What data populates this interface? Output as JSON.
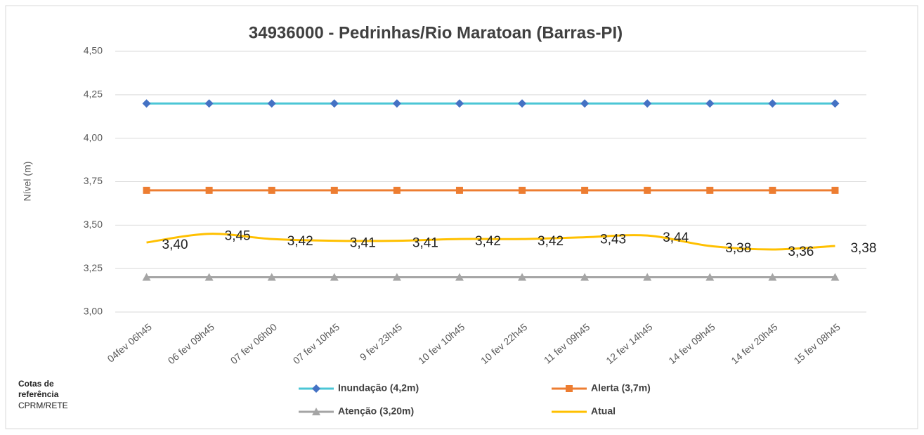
{
  "chart_data": {
    "type": "line",
    "title": "34936000 - Pedrinhas/Rio Maratoan (Barras-PI)",
    "y_label": "Nível (m)",
    "annotation": [
      "Cotas de",
      "referência",
      "CPRM/RETE"
    ],
    "categories": [
      "04fev 06h45",
      "06 fev 09h45",
      "07 fev 06h00",
      "07 fev 10h45",
      "9 fev 23h45",
      "10 fev 10h45",
      "10 fev 22h45",
      "11 fev 09h45",
      "12 fev 14h45",
      "14 fev 09h45",
      "14 fev 20h45",
      "15 fev 08h45"
    ],
    "series": [
      {
        "name": "Inundação (4,2m)",
        "color": "#4bc6d6",
        "marker": "diamond",
        "marker_color": "#4472c4",
        "values": [
          4.2,
          4.2,
          4.2,
          4.2,
          4.2,
          4.2,
          4.2,
          4.2,
          4.2,
          4.2,
          4.2,
          4.2
        ]
      },
      {
        "name": "Alerta (3,7m)",
        "color": "#ed7d31",
        "marker": "square",
        "marker_color": "#ed7d31",
        "values": [
          3.7,
          3.7,
          3.7,
          3.7,
          3.7,
          3.7,
          3.7,
          3.7,
          3.7,
          3.7,
          3.7,
          3.7
        ]
      },
      {
        "name": "Atenção (3,20m)",
        "color": "#a5a5a5",
        "marker": "triangle",
        "marker_color": "#a5a5a5",
        "values": [
          3.2,
          3.2,
          3.2,
          3.2,
          3.2,
          3.2,
          3.2,
          3.2,
          3.2,
          3.2,
          3.2,
          3.2
        ]
      },
      {
        "name": "Atual",
        "color": "#ffc000",
        "smooth": true,
        "values": [
          3.4,
          3.45,
          3.42,
          3.41,
          3.41,
          3.42,
          3.42,
          3.43,
          3.44,
          3.38,
          3.36,
          3.38
        ],
        "value_labels": [
          "3,40",
          "3,45",
          "3,42",
          "3,41",
          "3,41",
          "3,42",
          "3,42",
          "3,43",
          "3,44",
          "3,38",
          "3,36",
          "3,38"
        ]
      }
    ],
    "ylim": [
      3.0,
      4.5
    ],
    "yticks": [
      {
        "value": 3.0,
        "label": "3,00"
      },
      {
        "value": 3.25,
        "label": "3,25"
      },
      {
        "value": 3.5,
        "label": "3,50"
      },
      {
        "value": 3.75,
        "label": "3,75"
      },
      {
        "value": 4.0,
        "label": "4,00"
      },
      {
        "value": 4.25,
        "label": "4,25"
      },
      {
        "value": 4.5,
        "label": "4,50"
      }
    ],
    "grid": true
  }
}
